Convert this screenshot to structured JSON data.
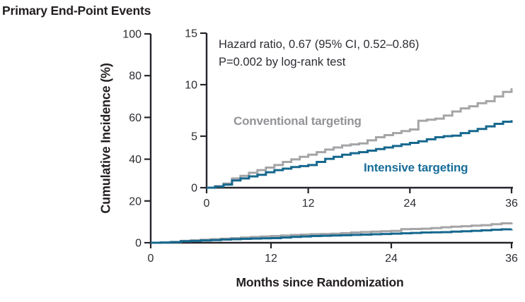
{
  "figure": {
    "title": "Primary End-Point Events",
    "x_axis_label": "Months since Randomization",
    "y_axis_label": "Cumulative Incidence (%)",
    "annotation": {
      "line1": "Hazard ratio, 0.67 (95% CI, 0.52–0.86)",
      "line2": "P=0.002 by log-rank test"
    },
    "curve_labels": {
      "conventional": "Conventional targeting",
      "intensive": "Intensive targeting"
    }
  },
  "colors": {
    "background": "#FFFFFF",
    "ink": "#26242A",
    "tick_text": "#2E2C33",
    "conventional": "#A5A5A8",
    "conventional_label": "#939398",
    "intensive": "#16688E",
    "intensive_label": "#186D99"
  },
  "chart_data": {
    "type": "line",
    "subtype": "step-cumulative-incidence",
    "title": "Primary End-Point Events",
    "xlabel": "Months since Randomization",
    "ylabel": "Cumulative Incidence (%)",
    "legend_position": "inline-labels",
    "grid": false,
    "annotations": [
      "Hazard ratio, 0.67 (95% CI, 0.52–0.86)",
      "P=0.002 by log-rank test"
    ],
    "x_months": [
      0,
      1,
      2,
      3,
      4,
      5,
      6,
      7,
      8,
      9,
      10,
      11,
      12,
      13,
      14,
      15,
      16,
      17,
      18,
      19,
      20,
      21,
      22,
      23,
      24,
      25,
      26,
      27,
      28,
      29,
      30,
      31,
      32,
      33,
      34,
      35,
      36
    ],
    "series": [
      {
        "name": "Conventional targeting",
        "color_key": "conventional",
        "values": [
          0,
          0.15,
          0.4,
          0.9,
          1.15,
          1.45,
          1.7,
          1.95,
          2.2,
          2.5,
          2.75,
          3.0,
          3.2,
          3.45,
          3.7,
          3.9,
          4.1,
          4.2,
          4.3,
          4.6,
          4.9,
          5.1,
          5.3,
          5.5,
          5.65,
          6.5,
          6.6,
          6.7,
          7.0,
          7.4,
          7.7,
          7.9,
          8.2,
          8.4,
          8.85,
          9.3,
          9.65
        ]
      },
      {
        "name": "Intensive targeting",
        "color_key": "intensive",
        "values": [
          0,
          0.1,
          0.3,
          0.7,
          0.9,
          1.1,
          1.25,
          1.5,
          1.7,
          1.85,
          2.0,
          2.1,
          2.2,
          2.5,
          2.8,
          3.0,
          3.2,
          3.35,
          3.45,
          3.6,
          3.75,
          3.9,
          4.05,
          4.2,
          4.35,
          4.5,
          4.7,
          4.9,
          5.0,
          5.05,
          5.3,
          5.5,
          5.7,
          5.95,
          6.2,
          6.4,
          6.55
        ]
      }
    ],
    "views": [
      {
        "id": "main",
        "xlim": [
          0,
          36
        ],
        "ylim": [
          0,
          100
        ],
        "xticks": [
          0,
          12,
          24,
          36
        ],
        "yticks": [
          0,
          20,
          40,
          60,
          80,
          100
        ]
      },
      {
        "id": "inset",
        "xlim": [
          0,
          36
        ],
        "ylim": [
          0,
          15
        ],
        "xticks": [
          0,
          12,
          24,
          36
        ],
        "yticks": [
          0,
          5,
          10,
          15
        ]
      }
    ]
  }
}
